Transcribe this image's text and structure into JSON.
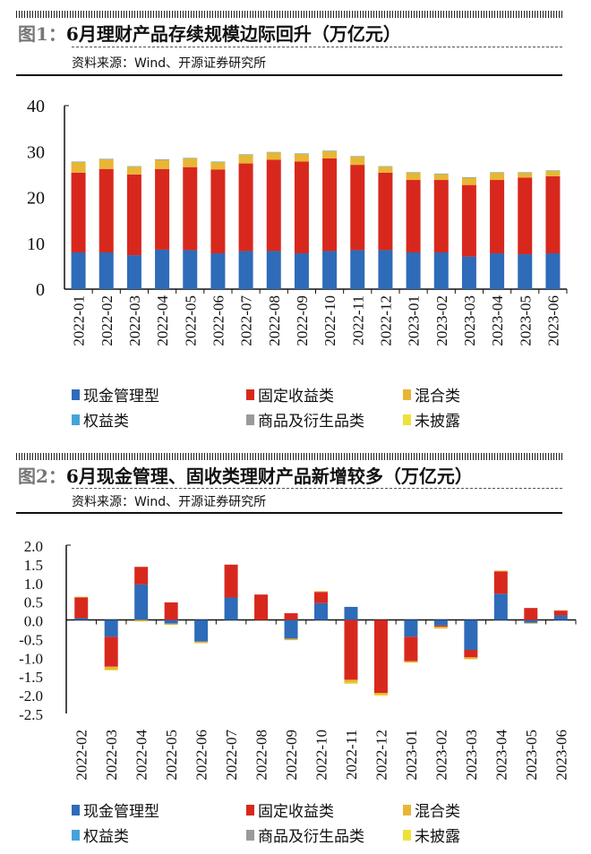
{
  "colors": {
    "cash": "#2e6bb8",
    "fixed": "#d8281e",
    "mixed": "#e8b634",
    "equity": "#45a3d9",
    "commodity": "#9a9a9a",
    "undisclosed": "#eee23a"
  },
  "fig1": {
    "label": "图1：",
    "title": "6月理财产品存续规模边际回升（万亿元）",
    "source": "资料来源：Wind、开源证券研究所"
  },
  "fig2": {
    "label": "图2：",
    "title": "6月现金管理、固收类理财产品新增较多（万亿元）",
    "source": "资料来源：Wind、开源证券研究所"
  },
  "chart_data": [
    {
      "type": "bar",
      "stacked": true,
      "ylim": [
        0,
        40
      ],
      "yticks": [
        "0",
        "10",
        "20",
        "30",
        "40"
      ],
      "grid": false,
      "legend": "bottom",
      "categories": [
        "2022-01",
        "2022-02",
        "2022-03",
        "2022-04",
        "2022-05",
        "2022-06",
        "2022-07",
        "2022-08",
        "2022-09",
        "2022-10",
        "2022-11",
        "2022-12",
        "2023-01",
        "2023-02",
        "2023-03",
        "2023-04",
        "2023-05",
        "2023-06"
      ],
      "series": [
        {
          "name": "现金管理型",
          "key": "cash",
          "values": [
            8.0,
            8.0,
            7.4,
            8.6,
            8.5,
            7.8,
            8.3,
            8.3,
            7.8,
            8.3,
            8.5,
            8.5,
            8.0,
            8.0,
            7.1,
            7.8,
            7.6,
            7.8
          ]
        },
        {
          "name": "固定收益类",
          "key": "fixed",
          "values": [
            17.4,
            18.2,
            17.6,
            17.6,
            18.1,
            18.3,
            19.1,
            19.9,
            20.0,
            20.2,
            18.6,
            16.9,
            15.8,
            15.8,
            15.6,
            16.0,
            16.7,
            16.8
          ]
        },
        {
          "name": "混合类",
          "key": "mixed",
          "values": [
            2.3,
            2.1,
            1.7,
            2.0,
            1.9,
            1.6,
            1.9,
            1.6,
            1.7,
            1.6,
            1.8,
            1.3,
            1.6,
            1.3,
            1.6,
            1.6,
            1.1,
            1.2
          ]
        },
        {
          "name": "权益类",
          "key": "equity",
          "values": [
            0.1,
            0.1,
            0.1,
            0.1,
            0.1,
            0.1,
            0.1,
            0.1,
            0.1,
            0.1,
            0.1,
            0.1,
            0.1,
            0.1,
            0.1,
            0.1,
            0.1,
            0.1
          ]
        },
        {
          "name": "商品及衍生品类",
          "key": "commodity",
          "values": [
            0,
            0,
            0,
            0,
            0,
            0,
            0,
            0,
            0,
            0,
            0,
            0,
            0,
            0,
            0,
            0,
            0,
            0
          ]
        },
        {
          "name": "未披露",
          "key": "undisclosed",
          "values": [
            0,
            0,
            0,
            0,
            0,
            0,
            0,
            0,
            0,
            0,
            0,
            0,
            0,
            0,
            0,
            0,
            0,
            0
          ]
        }
      ]
    },
    {
      "type": "bar",
      "stacked": true,
      "ylim": [
        -2.5,
        2.0
      ],
      "yticks": [
        "-2.5",
        "-2.0",
        "-1.5",
        "-1.0",
        "-0.5",
        "0.0",
        "0.5",
        "1.0",
        "1.5",
        "2.0"
      ],
      "grid": false,
      "legend": "bottom",
      "categories": [
        "2022-02",
        "2022-03",
        "2022-04",
        "2022-05",
        "2022-06",
        "2022-07",
        "2022-08",
        "2022-09",
        "2022-10",
        "2022-11",
        "2022-12",
        "2023-01",
        "2023-02",
        "2023-03",
        "2023-04",
        "2023-05",
        "2023-06"
      ],
      "series": [
        {
          "name": "现金管理型",
          "key": "cash",
          "values": [
            0.05,
            -0.45,
            0.95,
            -0.1,
            -0.58,
            0.6,
            0.0,
            -0.5,
            0.45,
            0.35,
            0.0,
            -0.45,
            -0.15,
            -0.8,
            0.7,
            -0.08,
            0.12
          ]
        },
        {
          "name": "固定收益类",
          "key": "fixed",
          "values": [
            0.55,
            -0.8,
            0.47,
            0.47,
            0.0,
            0.88,
            0.68,
            0.18,
            0.3,
            -1.6,
            -1.95,
            -0.65,
            -0.03,
            -0.2,
            0.6,
            0.32,
            0.13
          ]
        },
        {
          "name": "混合类",
          "key": "mixed",
          "values": [
            0.02,
            -0.08,
            -0.04,
            -0.03,
            -0.04,
            0.0,
            0.0,
            -0.04,
            0.02,
            -0.08,
            -0.05,
            -0.04,
            -0.05,
            -0.05,
            0.02,
            -0.02,
            0.01
          ]
        },
        {
          "name": "权益类",
          "key": "equity",
          "values": [
            0,
            0,
            0,
            0,
            0,
            0,
            0,
            0,
            0,
            0,
            0,
            0,
            0,
            0,
            0,
            0,
            0
          ]
        },
        {
          "name": "商品及衍生品类",
          "key": "commodity",
          "values": [
            0,
            0,
            0,
            0,
            0,
            0,
            0,
            0,
            0,
            0,
            0,
            0,
            0,
            0,
            0,
            0,
            0
          ]
        },
        {
          "name": "未披露",
          "key": "undisclosed",
          "values": [
            0,
            -0.02,
            0,
            0,
            0,
            0,
            0,
            0,
            0,
            -0.03,
            -0.03,
            0,
            0,
            0,
            0,
            0,
            0
          ]
        }
      ]
    }
  ]
}
